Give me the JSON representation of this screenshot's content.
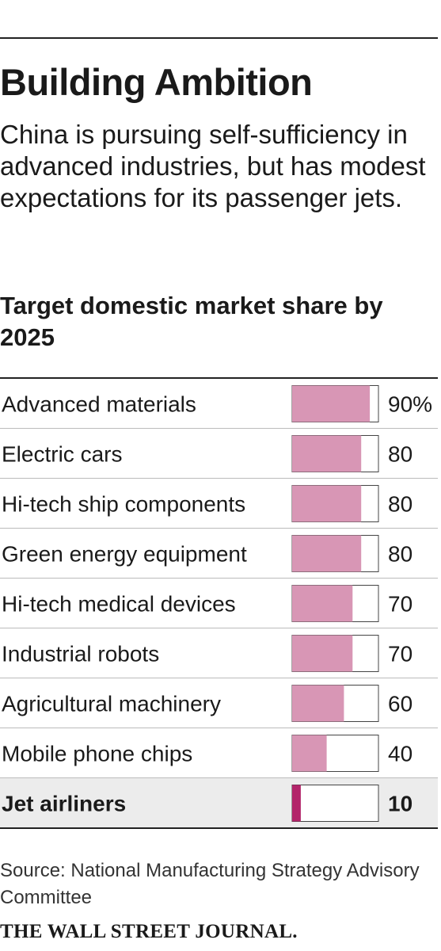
{
  "header": {
    "title": "Building Ambition",
    "subtitle": "China is pursuing self-sufficiency in advanced industries, but has modest expectations for its passenger jets."
  },
  "chart_data": {
    "type": "bar",
    "title": "Target domestic market share by 2025",
    "categories": [
      "Advanced materials",
      "Electric cars",
      "Hi-tech ship components",
      "Green energy equipment",
      "Hi-tech medical devices",
      "Industrial robots",
      "Agricultural machinery",
      "Mobile phone chips",
      "Jet airliners"
    ],
    "values": [
      90,
      80,
      80,
      80,
      70,
      70,
      60,
      40,
      10
    ],
    "value_labels": [
      "90%",
      "80",
      "80",
      "80",
      "70",
      "70",
      "60",
      "40",
      "10"
    ],
    "highlighted_category": "Jet airliners",
    "ylim": [
      0,
      100
    ],
    "unit": "%",
    "colors": {
      "bar": "#d896b5",
      "bar_highlight": "#b3246a",
      "highlight_row_bg": "#ececec",
      "rule": "#bbbbbb",
      "frame": "#222222"
    }
  },
  "footer": {
    "source": "Source: National Manufacturing Strategy Advisory Committee",
    "credit": "THE WALL STREET JOURNAL."
  }
}
